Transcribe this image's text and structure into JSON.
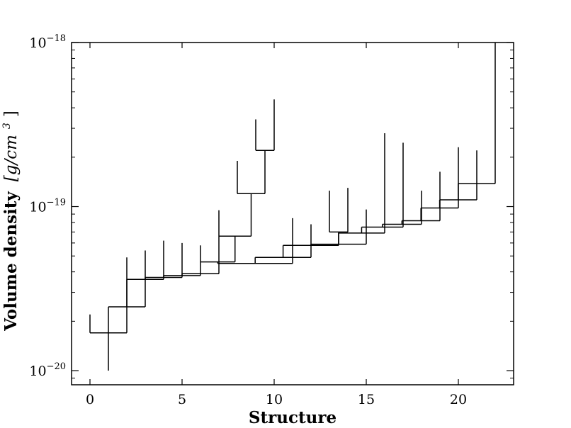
{
  "chart_data": {
    "type": "dendrogram",
    "title": "",
    "xlabel": "Structure",
    "ylabel": {
      "text": "Volume density",
      "unit_base": "[g/cm",
      "unit_exp": "3",
      "unit_close": "]"
    },
    "xlim": [
      -1,
      23
    ],
    "ylim": [
      8.2e-21,
      1e-18
    ],
    "yscale": "log",
    "xticks": [
      {
        "value": 0,
        "label": "0"
      },
      {
        "value": 5,
        "label": "5"
      },
      {
        "value": 10,
        "label": "10"
      },
      {
        "value": 15,
        "label": "15"
      },
      {
        "value": 20,
        "label": "20"
      }
    ],
    "yticks": [
      {
        "value": 1e-20,
        "base": "10",
        "exp": "−20"
      },
      {
        "value": 1e-19,
        "base": "10",
        "exp": "−19"
      },
      {
        "value": 1e-18,
        "base": "10",
        "exp": "−18"
      }
    ],
    "grid": false,
    "legend": "none",
    "line_color": "#000000",
    "leaves": [
      {
        "x": 0,
        "top": 2.2e-20
      },
      {
        "x": 2,
        "top": 4.9e-20
      },
      {
        "x": 3,
        "top": 5.4e-20
      },
      {
        "x": 4,
        "top": 6.2e-20
      },
      {
        "x": 5,
        "top": 6e-20
      },
      {
        "x": 6,
        "top": 5.8e-20
      },
      {
        "x": 7,
        "top": 9.5e-20
      },
      {
        "x": 8,
        "top": 1.9e-19
      },
      {
        "x": 9,
        "top": 3.4e-19
      },
      {
        "x": 10,
        "top": 4.5e-19
      },
      {
        "x": 11,
        "top": 8.5e-20
      },
      {
        "x": 12,
        "top": 7.8e-20
      },
      {
        "x": 13,
        "top": 1.25e-19
      },
      {
        "x": 14,
        "top": 1.3e-19
      },
      {
        "x": 15,
        "top": 9.6e-20
      },
      {
        "x": 16,
        "top": 2.8e-19
      },
      {
        "x": 17,
        "top": 2.45e-19
      },
      {
        "x": 18,
        "top": 1.25e-19
      },
      {
        "x": 19,
        "top": 1.63e-19
      },
      {
        "x": 20,
        "top": 2.3e-19
      },
      {
        "x": 21,
        "top": 2.2e-19
      },
      {
        "x": 22,
        "top": 1e-18
      }
    ],
    "root": {
      "x": 1,
      "bottom": 1e-20
    },
    "merges": [
      {
        "a": "L0",
        "b": "L2",
        "level": 1.7e-20
      },
      {
        "a": "M0",
        "b": "L3",
        "level": 2.45e-20
      },
      {
        "a": "M1",
        "b": "L4",
        "level": 3.6e-20
      },
      {
        "a": "M2",
        "b": "L5",
        "level": 3.7e-20
      },
      {
        "a": "M3",
        "b": "L6",
        "level": 3.8e-20
      },
      {
        "a": "M4",
        "b": "L7",
        "level": 3.9e-20
      },
      {
        "a": "L9",
        "b": "L10",
        "level": 2.2e-19
      },
      {
        "a": "L8",
        "b": "M6",
        "level": 1.2e-19
      },
      {
        "a": "L7b",
        "b": "M7",
        "level": 6.6e-20
      },
      {
        "a": "L6b",
        "b": "M8",
        "level": 4.6e-20
      },
      {
        "a": "M9",
        "b": "L11",
        "level": 4.5e-20
      },
      {
        "a": "M10",
        "b": "L12",
        "level": 4.9e-20
      },
      {
        "a": "L13",
        "b": "L14",
        "level": 7e-20
      },
      {
        "a": "M11",
        "b": "M12",
        "level": 5.8e-20
      },
      {
        "a": "M13",
        "b": "L15",
        "level": 5.9e-20
      },
      {
        "a": "M14",
        "b": "L16",
        "level": 6.9e-20
      },
      {
        "a": "M15",
        "b": "L17",
        "level": 7.5e-20
      },
      {
        "a": "M16",
        "b": "L18",
        "level": 7.8e-20
      },
      {
        "a": "M17",
        "b": "L19",
        "level": 8.2e-20
      },
      {
        "a": "M18",
        "b": "L20",
        "level": 9.8e-20
      },
      {
        "a": "M19",
        "b": "L21",
        "level": 1.1e-19
      },
      {
        "a": "M20",
        "b": "L22",
        "level": 1.38e-19
      }
    ]
  }
}
